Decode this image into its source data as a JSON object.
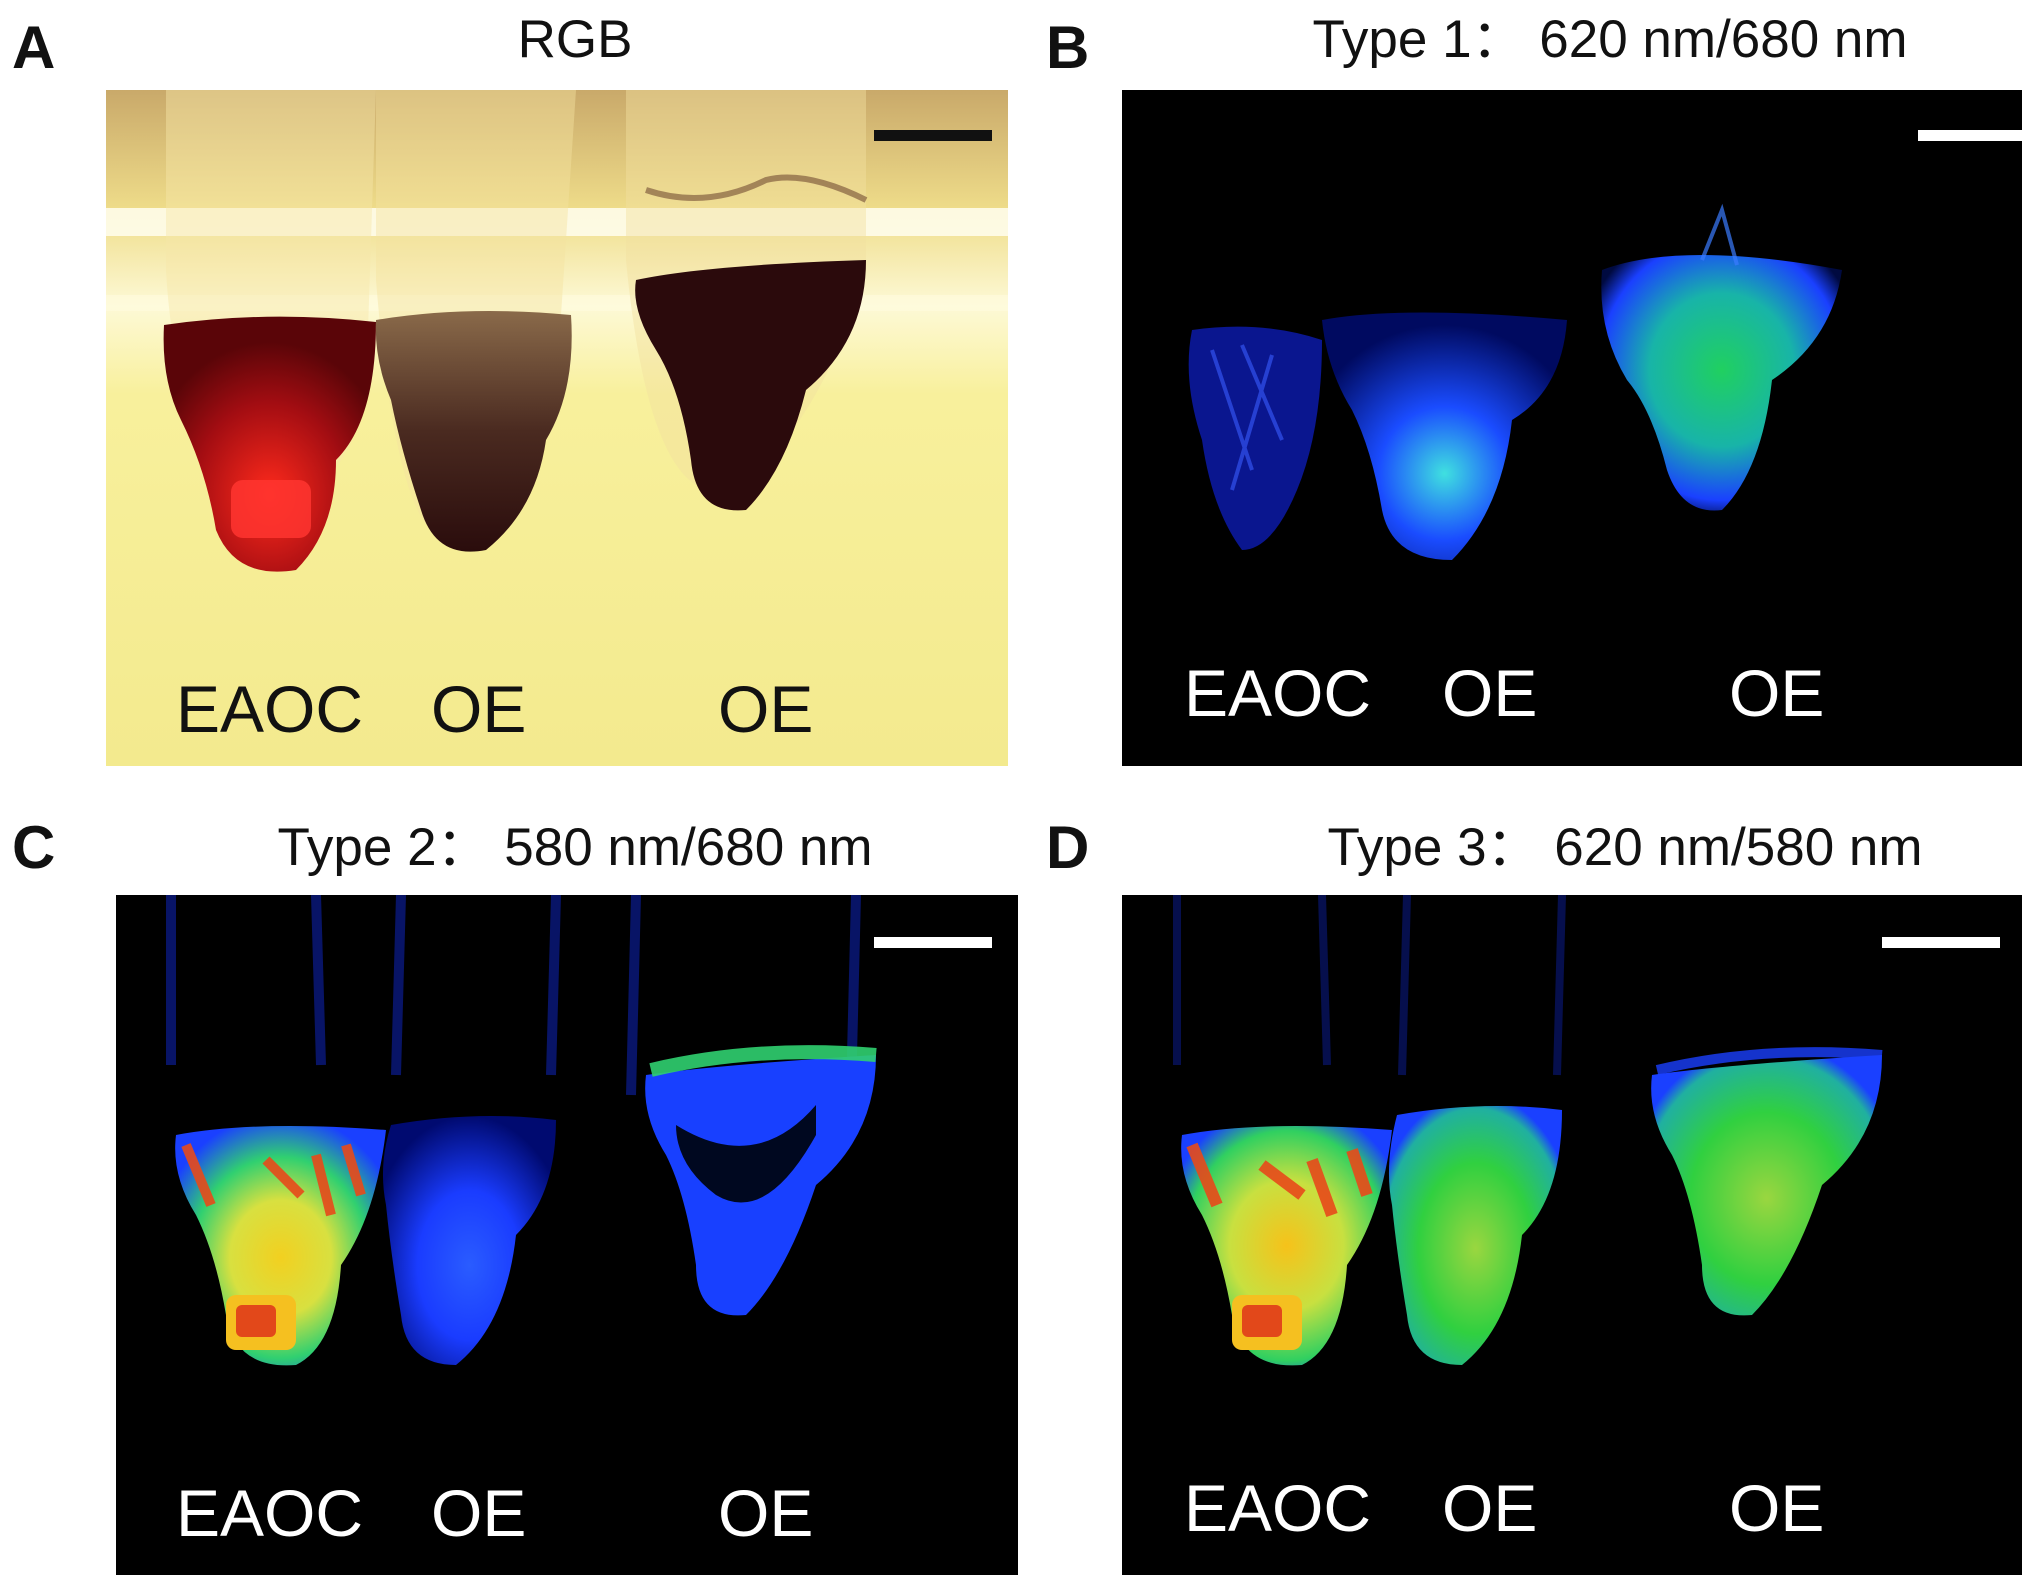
{
  "figure": {
    "panels": [
      {
        "letter": "A",
        "title": "RGB",
        "labels": [
          "EAOC",
          "OE",
          "OE"
        ],
        "background": "#f8f2a0",
        "scale_bar_color": "#111111"
      },
      {
        "letter": "B",
        "title": "Type 1： 620 nm/680 nm",
        "labels": [
          "EAOC",
          "OE",
          "OE"
        ],
        "background": "#000000",
        "scale_bar_color": "#ffffff"
      },
      {
        "letter": "C",
        "title": "Type 2： 580 nm/680 nm",
        "labels": [
          "EAOC",
          "OE",
          "OE"
        ],
        "background": "#000000",
        "scale_bar_color": "#ffffff"
      },
      {
        "letter": "D",
        "title": "Type 3： 620 nm/580 nm",
        "labels": [
          "EAOC",
          "OE",
          "OE"
        ],
        "background": "#000000",
        "scale_bar_color": "#ffffff"
      }
    ]
  }
}
